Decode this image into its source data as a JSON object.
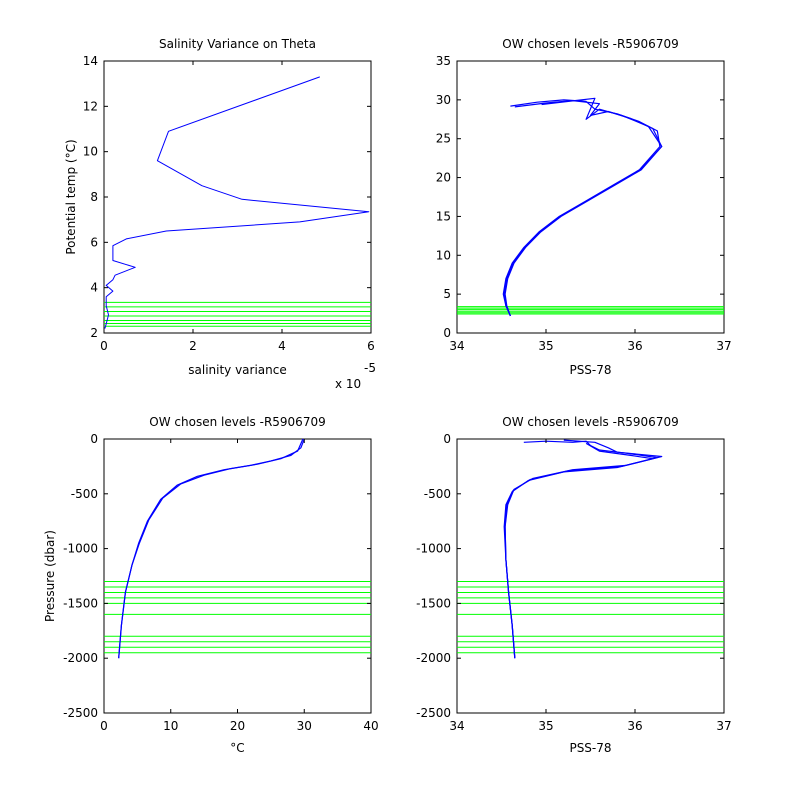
{
  "chart_data": [
    {
      "id": "p1",
      "type": "line",
      "title": "Salinity Variance on Theta",
      "xlabel": "salinity variance",
      "ylabel": "Potential temp (°C)",
      "x_multiplier_label": "x 10",
      "x_multiplier_exp": "-5",
      "xlim": [
        0,
        6
      ],
      "ylim": [
        2,
        14
      ],
      "xticks": [
        0,
        2,
        4,
        6
      ],
      "yticks": [
        2,
        4,
        6,
        8,
        10,
        12,
        14
      ],
      "colors": {
        "line": "#0000ff",
        "levels": "#00ff00"
      },
      "series": [
        {
          "x": [
            4.85,
            1.45,
            1.2,
            2.2,
            3.1,
            5.95,
            4.4,
            1.4,
            0.5,
            0.2,
            0.2,
            0.7,
            0.25,
            0.2,
            0.05,
            0.2,
            0.05,
            0.05,
            0.1,
            0.05,
            0.02
          ],
          "y": [
            13.3,
            10.9,
            9.6,
            8.5,
            7.9,
            7.35,
            6.9,
            6.5,
            6.15,
            5.85,
            5.2,
            4.9,
            4.55,
            4.35,
            4.1,
            3.85,
            3.6,
            3.2,
            2.8,
            2.4,
            2.2
          ]
        }
      ],
      "levels": [
        3.35,
        3.15,
        2.95,
        2.75,
        2.55,
        2.42,
        2.3
      ]
    },
    {
      "id": "p2",
      "type": "line",
      "title": "OW chosen levels -R5906709",
      "xlabel": "PSS-78",
      "ylabel": "",
      "xlim": [
        34,
        37
      ],
      "ylim": [
        0,
        35
      ],
      "xticks": [
        34,
        35,
        36,
        37
      ],
      "yticks": [
        0,
        5,
        10,
        15,
        20,
        25,
        30,
        35
      ],
      "colors": {
        "line": "#0000ff",
        "levels": "#00ff00"
      },
      "series": [
        {
          "x": [
            34.6,
            34.55,
            34.52,
            34.55,
            34.62,
            34.75,
            34.92,
            35.15,
            35.45,
            35.75,
            36.05,
            36.28,
            36.25,
            36.05,
            35.8,
            35.55,
            35.45,
            35.2,
            34.9,
            34.6
          ],
          "y": [
            2.2,
            3.5,
            5,
            7,
            9,
            11,
            13,
            15,
            17,
            19,
            21,
            24,
            26,
            27.2,
            28.2,
            28.8,
            29.8,
            30,
            29.7,
            29.2
          ]
        },
        {
          "x": [
            34.6,
            34.55,
            34.53,
            34.56,
            34.63,
            34.76,
            34.93,
            35.16,
            35.46,
            35.76,
            36.06,
            36.3,
            36.2,
            35.95,
            35.7,
            35.5,
            35.6,
            35.3,
            35.0,
            34.65
          ],
          "y": [
            2.2,
            3.5,
            5,
            7,
            9,
            11,
            13,
            15,
            17,
            19,
            21,
            24,
            26.3,
            27.6,
            28.5,
            28.0,
            29.5,
            29.9,
            29.6,
            29.1
          ]
        },
        {
          "x": [
            34.6,
            34.56,
            34.54,
            34.57,
            34.64,
            34.77,
            34.94,
            35.17,
            35.47,
            35.77,
            36.07,
            36.3,
            36.15,
            35.85,
            35.6,
            35.45,
            35.55,
            35.25,
            34.95
          ],
          "y": [
            2.2,
            3.5,
            5,
            7,
            9,
            11,
            13,
            15,
            17,
            19,
            21,
            24,
            26.6,
            28.0,
            28.8,
            27.5,
            30.2,
            29.8,
            29.4
          ]
        }
      ],
      "levels": [
        3.4,
        3.2,
        3.0,
        2.8,
        2.6,
        2.45
      ]
    },
    {
      "id": "p3",
      "type": "line",
      "title": "OW chosen levels -R5906709",
      "xlabel": "°C",
      "ylabel": "Pressure (dbar)",
      "xlim": [
        0,
        40
      ],
      "ylim": [
        -2500,
        0
      ],
      "xticks": [
        0,
        10,
        20,
        30,
        40
      ],
      "yticks": [
        -2500,
        -2000,
        -1500,
        -1000,
        -500,
        0
      ],
      "colors": {
        "line": "#0000ff",
        "levels": "#00ff00"
      },
      "series": [
        {
          "x": [
            2.2,
            2.6,
            3.2,
            4.2,
            5.2,
            6.5,
            8.5,
            11,
            14,
            18,
            22,
            25,
            28,
            29.5,
            30
          ],
          "y": [
            -2000,
            -1700,
            -1400,
            -1150,
            -950,
            -750,
            -550,
            -420,
            -340,
            -280,
            -240,
            -200,
            -150,
            -80,
            0
          ]
        },
        {
          "x": [
            2.2,
            2.6,
            3.2,
            4.2,
            5.3,
            6.7,
            8.8,
            11.5,
            15,
            19,
            23,
            26.5,
            29,
            29.8
          ],
          "y": [
            -2000,
            -1700,
            -1400,
            -1150,
            -950,
            -740,
            -540,
            -410,
            -330,
            -270,
            -230,
            -180,
            -110,
            0
          ]
        }
      ],
      "levels": [
        -1300,
        -1350,
        -1400,
        -1450,
        -1500,
        -1600,
        -1800,
        -1850,
        -1900,
        -1950
      ]
    },
    {
      "id": "p4",
      "type": "line",
      "title": "OW chosen levels -R5906709",
      "xlabel": "PSS-78",
      "ylabel": "",
      "xlim": [
        34,
        37
      ],
      "ylim": [
        -2500,
        0
      ],
      "xticks": [
        34,
        35,
        36,
        37
      ],
      "yticks": [
        -2500,
        -2000,
        -1500,
        -1000,
        -500,
        0
      ],
      "colors": {
        "line": "#0000ff",
        "levels": "#00ff00"
      },
      "series": [
        {
          "x": [
            34.65,
            34.62,
            34.58,
            34.55,
            34.53,
            34.55,
            34.62,
            34.8,
            35.2,
            35.8,
            36.25,
            35.9,
            35.6,
            35.5,
            35.45,
            35.3,
            35.0,
            34.75
          ],
          "y": [
            -2000,
            -1700,
            -1400,
            -1100,
            -800,
            -600,
            -480,
            -380,
            -300,
            -260,
            -170,
            -130,
            -100,
            -60,
            -20,
            -30,
            -20,
            -30
          ]
        },
        {
          "x": [
            34.65,
            34.62,
            34.58,
            34.55,
            34.54,
            34.56,
            34.63,
            34.82,
            35.25,
            35.85,
            36.3,
            35.8,
            35.7,
            35.55,
            35.2
          ],
          "y": [
            -2000,
            -1700,
            -1400,
            -1100,
            -800,
            -600,
            -470,
            -370,
            -290,
            -250,
            -160,
            -120,
            -80,
            -30,
            -10
          ]
        },
        {
          "x": [
            34.65,
            34.62,
            34.58,
            34.55,
            34.54,
            34.57,
            34.64,
            34.85,
            35.3,
            35.9,
            36.2,
            35.95,
            35.6,
            35.45
          ],
          "y": [
            -2000,
            -1700,
            -1400,
            -1100,
            -800,
            -600,
            -460,
            -360,
            -280,
            -240,
            -180,
            -150,
            -110,
            -40
          ]
        }
      ],
      "levels": [
        -1300,
        -1350,
        -1400,
        -1450,
        -1500,
        -1600,
        -1800,
        -1850,
        -1900,
        -1950
      ]
    }
  ]
}
